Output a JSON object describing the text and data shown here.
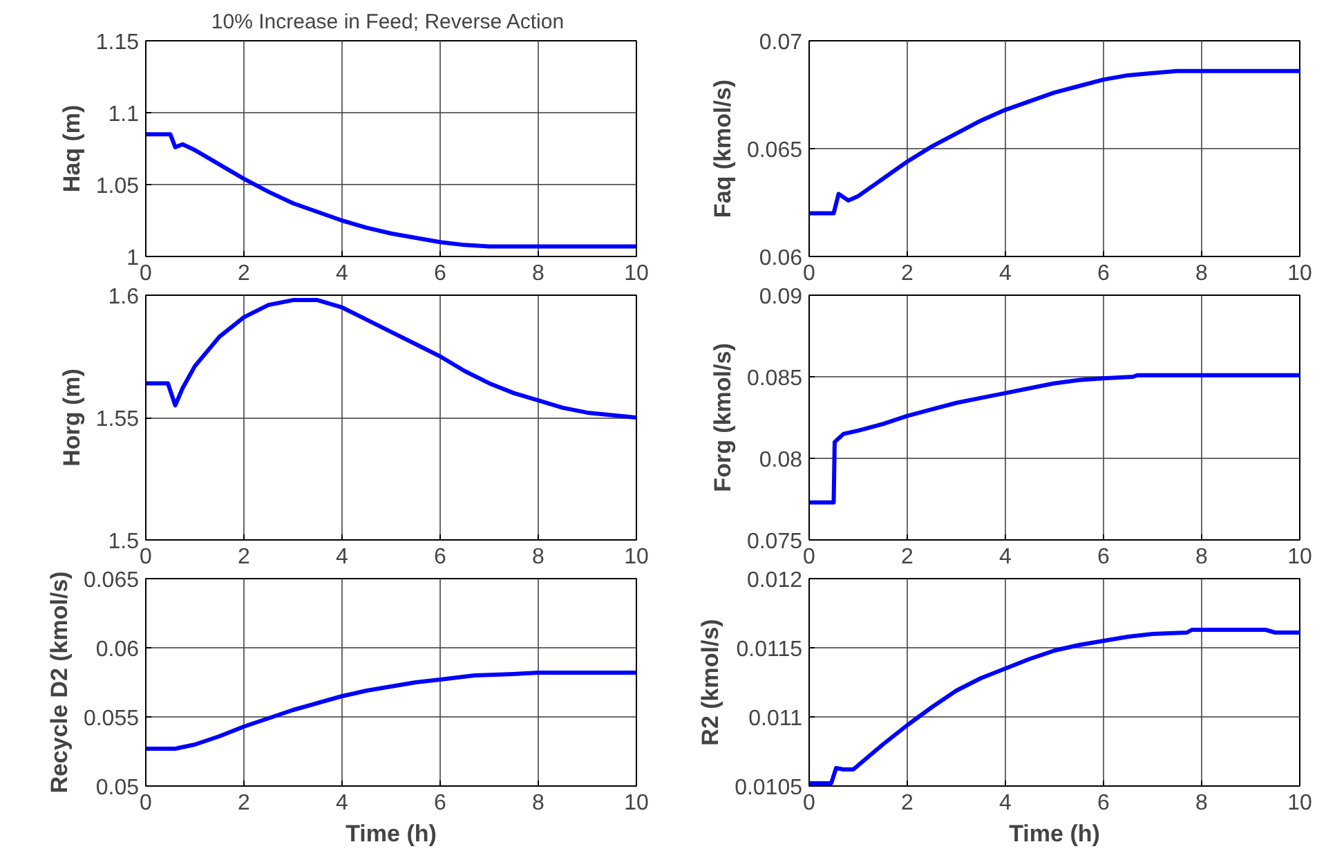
{
  "chart_data": [
    {
      "type": "line",
      "title": "10% Increase  in Feed; Reverse Action",
      "ylabel": "Haq (m)",
      "xlim": [
        0,
        10
      ],
      "xticks": [
        0,
        2,
        4,
        6,
        8,
        10
      ],
      "ylim": [
        1,
        1.15
      ],
      "yticks": [
        1,
        1.05,
        1.1,
        1.15
      ],
      "grid": true,
      "series": [
        {
          "color": "#0000ff",
          "x": [
            0,
            0.5,
            0.6,
            0.75,
            1,
            1.5,
            2,
            2.5,
            3,
            3.5,
            4,
            4.5,
            5,
            5.5,
            6,
            6.5,
            7,
            8,
            9,
            10
          ],
          "values": [
            1.085,
            1.085,
            1.076,
            1.078,
            1.074,
            1.064,
            1.054,
            1.045,
            1.037,
            1.031,
            1.025,
            1.02,
            1.016,
            1.013,
            1.01,
            1.008,
            1.007,
            1.007,
            1.007,
            1.007
          ]
        }
      ]
    },
    {
      "type": "line",
      "ylabel": "Faq (kmol/s)",
      "xlim": [
        0,
        10
      ],
      "xticks": [
        0,
        2,
        4,
        6,
        8,
        10
      ],
      "ylim": [
        0.06,
        0.07
      ],
      "yticks": [
        0.06,
        0.065,
        0.07
      ],
      "grid": true,
      "series": [
        {
          "color": "#0000ff",
          "x": [
            0,
            0.5,
            0.6,
            0.8,
            1,
            1.5,
            2,
            2.5,
            3,
            3.5,
            4,
            4.5,
            5,
            5.5,
            6,
            6.5,
            7,
            7.5,
            8,
            10
          ],
          "values": [
            0.062,
            0.062,
            0.0629,
            0.0626,
            0.0628,
            0.0636,
            0.0644,
            0.0651,
            0.0657,
            0.0663,
            0.0668,
            0.0672,
            0.0676,
            0.0679,
            0.0682,
            0.0684,
            0.0685,
            0.0686,
            0.0686,
            0.0686
          ]
        }
      ]
    },
    {
      "type": "line",
      "ylabel": "Horg (m)",
      "xlim": [
        0,
        10
      ],
      "xticks": [
        0,
        2,
        4,
        6,
        8,
        10
      ],
      "ylim": [
        1.5,
        1.6
      ],
      "yticks": [
        1.5,
        1.55,
        1.6
      ],
      "grid": true,
      "series": [
        {
          "color": "#0000ff",
          "x": [
            0,
            0.45,
            0.6,
            0.75,
            1,
            1.5,
            2,
            2.5,
            3,
            3.5,
            4,
            4.5,
            5,
            5.5,
            6,
            6.5,
            7,
            7.5,
            8,
            8.5,
            9,
            9.5,
            10
          ],
          "values": [
            1.564,
            1.564,
            1.555,
            1.562,
            1.571,
            1.583,
            1.591,
            1.596,
            1.598,
            1.598,
            1.595,
            1.59,
            1.585,
            1.58,
            1.575,
            1.569,
            1.564,
            1.56,
            1.557,
            1.554,
            1.552,
            1.551,
            1.55
          ]
        }
      ]
    },
    {
      "type": "line",
      "ylabel": "Forg (kmol/s)",
      "xlim": [
        0,
        10
      ],
      "xticks": [
        0,
        2,
        4,
        6,
        8,
        10
      ],
      "ylim": [
        0.075,
        0.09
      ],
      "yticks": [
        0.075,
        0.08,
        0.085,
        0.09
      ],
      "grid": true,
      "series": [
        {
          "color": "#0000ff",
          "x": [
            0,
            0.5,
            0.52,
            0.7,
            1,
            1.5,
            2,
            2.5,
            3,
            3.5,
            4,
            4.5,
            5,
            5.5,
            6,
            6.6,
            6.7,
            8,
            10
          ],
          "values": [
            0.0773,
            0.0773,
            0.081,
            0.0815,
            0.0817,
            0.0821,
            0.0826,
            0.083,
            0.0834,
            0.0837,
            0.084,
            0.0843,
            0.0846,
            0.0848,
            0.0849,
            0.085,
            0.0851,
            0.0851,
            0.0851
          ]
        }
      ]
    },
    {
      "type": "line",
      "ylabel": "Recycle D2 (kmol/s)",
      "xlabel": "Time (h)",
      "xlim": [
        0,
        10
      ],
      "xticks": [
        0,
        2,
        4,
        6,
        8,
        10
      ],
      "ylim": [
        0.05,
        0.065
      ],
      "yticks": [
        0.05,
        0.055,
        0.06,
        0.065
      ],
      "grid": true,
      "series": [
        {
          "color": "#0000ff",
          "x": [
            0,
            0.6,
            1,
            1.5,
            2,
            2.5,
            3,
            3.5,
            4,
            4.5,
            5,
            5.5,
            6,
            6.7,
            7.5,
            8,
            10
          ],
          "values": [
            0.0527,
            0.0527,
            0.053,
            0.0536,
            0.0543,
            0.0549,
            0.0555,
            0.056,
            0.0565,
            0.0569,
            0.0572,
            0.0575,
            0.0577,
            0.058,
            0.0581,
            0.0582,
            0.0582
          ]
        }
      ]
    },
    {
      "type": "line",
      "ylabel": "R2 (kmol/s)",
      "xlabel": "Time (h)",
      "xlim": [
        0,
        10
      ],
      "xticks": [
        0,
        2,
        4,
        6,
        8,
        10
      ],
      "ylim": [
        0.0105,
        0.012
      ],
      "yticks": [
        0.0105,
        0.011,
        0.0115,
        0.012
      ],
      "grid": true,
      "series": [
        {
          "color": "#0000ff",
          "x": [
            0,
            0.45,
            0.55,
            0.7,
            0.9,
            1,
            1.5,
            2,
            2.5,
            3,
            3.5,
            4,
            4.5,
            5,
            5.5,
            6,
            6.5,
            7,
            7.7,
            7.8,
            9.3,
            9.5,
            10
          ],
          "values": [
            0.01052,
            0.01052,
            0.01063,
            0.01062,
            0.01062,
            0.01065,
            0.0108,
            0.01094,
            0.01107,
            0.01119,
            0.01128,
            0.01135,
            0.01142,
            0.01148,
            0.01152,
            0.01155,
            0.01158,
            0.0116,
            0.01161,
            0.01163,
            0.01163,
            0.01161,
            0.01161
          ]
        }
      ]
    }
  ]
}
